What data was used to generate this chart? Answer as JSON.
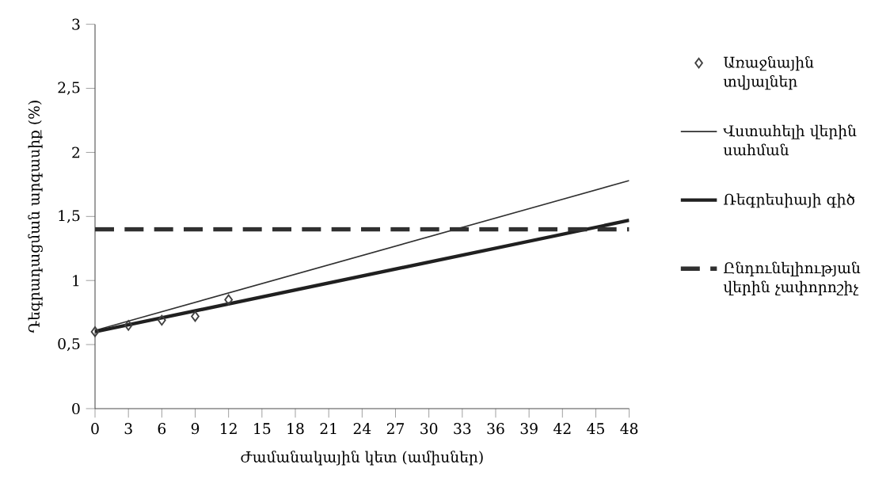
{
  "chart_data": {
    "type": "line",
    "xlabel": "Ժամանակային կետ (ամիսներ)",
    "ylabel": "Դեգրադացման արգասիք (%)",
    "series": [
      {
        "name": "Առաջնային տվյալներ",
        "type": "scatter",
        "marker": "diamond",
        "color": "#404040",
        "x": [
          0,
          3,
          6,
          9,
          12
        ],
        "values": [
          0.6,
          0.65,
          0.69,
          0.72,
          0.85
        ]
      },
      {
        "name": "Վստահելի վերին սահման",
        "color": "#303030",
        "x": [
          0,
          48
        ],
        "values": [
          0.61,
          1.78
        ]
      },
      {
        "name": "Ռեգրեսիայի գիծ",
        "color": "#202020",
        "x": [
          0,
          48
        ],
        "values": [
          0.6,
          1.47
        ]
      }
    ],
    "ref_lines": [
      {
        "axis": "y",
        "value": 1.4,
        "label": "Ընդունելիության վերին չափորոշիչ",
        "color": "#303030",
        "line_style": "dashed"
      }
    ],
    "xlim": [
      0,
      48
    ],
    "xticks": [
      0,
      3,
      6,
      9,
      12,
      15,
      18,
      21,
      24,
      27,
      30,
      33,
      36,
      39,
      42,
      45,
      48
    ],
    "ylim": [
      0,
      3
    ],
    "yticks": [
      0,
      {
        "value": 0.5,
        "label": "0,5"
      },
      1,
      {
        "value": 1.5,
        "label": "1,5"
      },
      2,
      {
        "value": 2.5,
        "label": "2,5"
      },
      3
    ],
    "legend": "right",
    "grid": false
  }
}
